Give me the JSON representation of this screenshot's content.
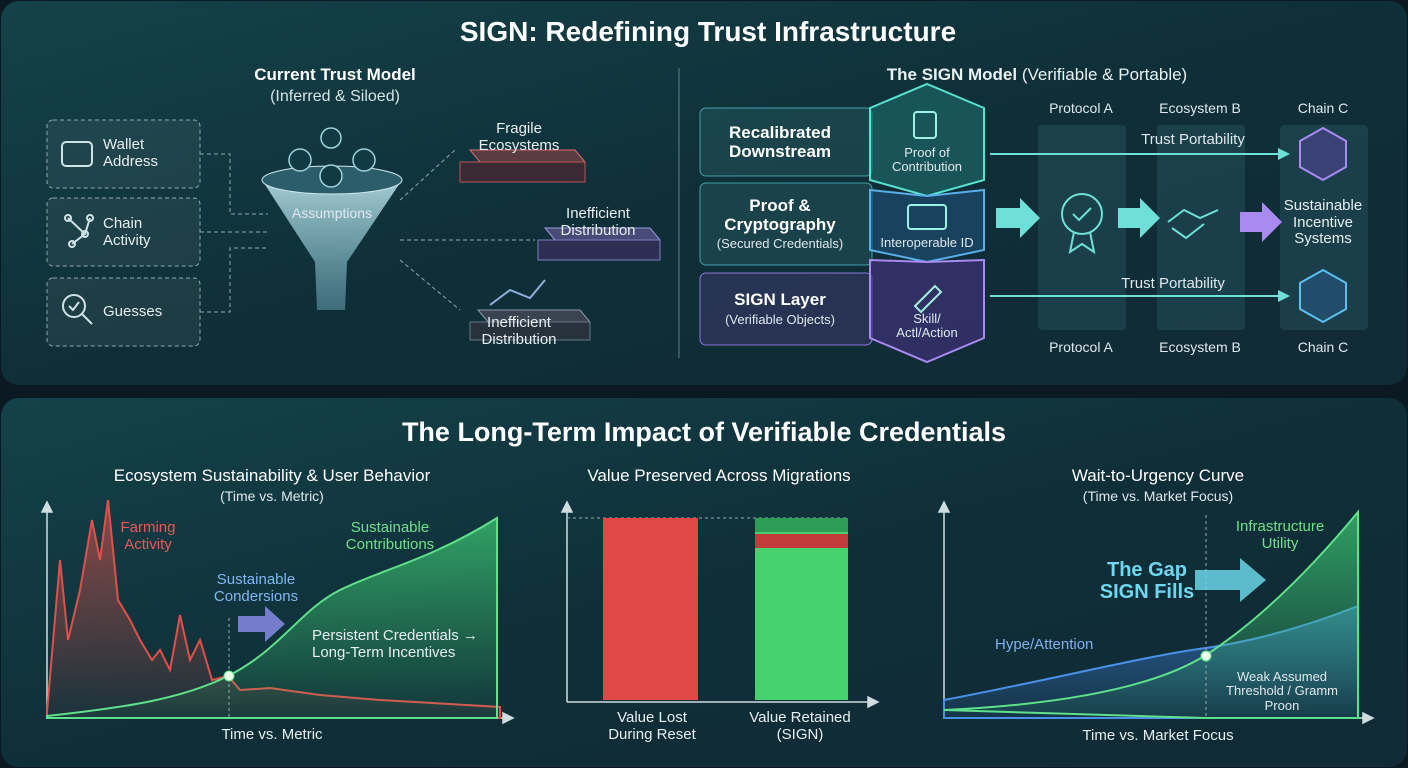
{
  "top": {
    "title": "SIGN: Redefining Trust Infrastructure",
    "current": {
      "title": "Current Trust Model",
      "subtitle": "(Inferred & Siloed)",
      "inputs": [
        "Wallet Address",
        "Chain Activity",
        "Guesses"
      ],
      "funnel": "Assumptions",
      "outputs": [
        "Fragile Ecosystems",
        "Inefficient Distribution",
        "Inefficient Distribution"
      ]
    },
    "sign": {
      "title": "The SIGN Model",
      "title_note": "(Verifiable & Portable)",
      "layers": [
        {
          "title": "Recalibrated Downstream"
        },
        {
          "title": "Proof & Cryptography",
          "subtitle": "(Secured Credentials)"
        },
        {
          "title": "SIGN Layer",
          "subtitle": "(Verifiable Objects)"
        }
      ],
      "hex": [
        "Proof of Contribution",
        "Interoperable ID",
        "Skill/ Actl/Action"
      ],
      "columns_top": [
        "Protocol A",
        "Ecosystem B",
        "Chain C"
      ],
      "columns_bottom": [
        "Protocol A",
        "Ecosystem B",
        "Chain C"
      ],
      "portability": [
        "Trust Portability",
        "Trust Portability"
      ],
      "outcome": "Sustainable Incentive Systems"
    }
  },
  "bottom": {
    "title": "The Long-Term Impact of Verifiable Credentials",
    "panels": [
      {
        "title": "Ecosystem Sustainability & User Behavior",
        "subtitle": "(Time vs. Metric)",
        "labels": [
          "Farming Activity",
          "Sustainable Condersions",
          "Sustainable Contributions",
          "Persistent Credentials → Long-Term Incentives"
        ],
        "x_label": "Time vs. Metric"
      },
      {
        "title": "Value Preserved Across Migrations",
        "labels": [
          "Value Lost During Reset",
          "Value Retained (SIGN)"
        ]
      },
      {
        "title": "Wait-to-Urgency Curve",
        "subtitle": "(Time vs. Market Focus)",
        "labels": [
          "Infrastructure Utility",
          "The Gap SIGN Fills",
          "Hype/Attention",
          "Weak Assumed Threshold / Gramm Proon"
        ],
        "x_label": "Time vs. Market Focus"
      }
    ]
  }
}
